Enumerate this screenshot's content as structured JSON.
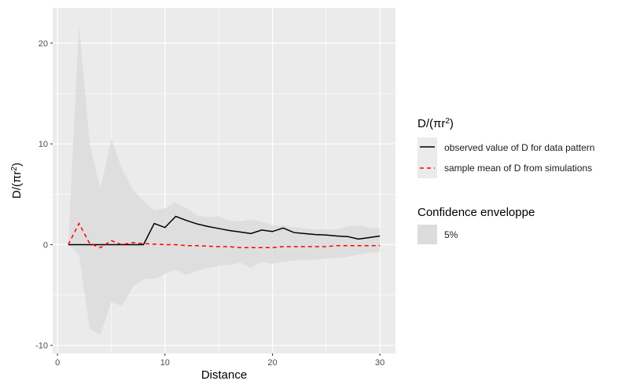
{
  "chart_data": {
    "type": "line",
    "title": "",
    "xlabel": "Distance",
    "ylabel": "D/(πr²)",
    "xlim": [
      -0.45,
      31.45
    ],
    "ylim": [
      -10.8,
      23.5
    ],
    "xticks": [
      0,
      10,
      20,
      30
    ],
    "yticks": [
      -10,
      0,
      10,
      20
    ],
    "xtick_labels": [
      "0",
      "10",
      "20",
      "30"
    ],
    "ytick_labels": [
      "-10",
      "0",
      "10",
      "20"
    ],
    "grid": true,
    "legend_placement": "right",
    "x": [
      1,
      2,
      3,
      4,
      5,
      6,
      7,
      8,
      9,
      10,
      11,
      12,
      13,
      14,
      15,
      16,
      17,
      18,
      19,
      20,
      21,
      22,
      23,
      24,
      25,
      26,
      27,
      28,
      29,
      30
    ],
    "series": [
      {
        "name": "observed value of D for data pattern",
        "color": "#000000",
        "style": "solid",
        "values": [
          0,
          0,
          0,
          0,
          0,
          0,
          0,
          0,
          2.1,
          1.7,
          2.8,
          2.4,
          2.05,
          1.8,
          1.6,
          1.4,
          1.25,
          1.1,
          1.45,
          1.3,
          1.65,
          1.2,
          1.1,
          1.0,
          0.95,
          0.85,
          0.8,
          0.55,
          0.7,
          0.85
        ]
      },
      {
        "name": "sample mean of D from simulations",
        "color": "#FF0000",
        "style": "dashed",
        "values": [
          0,
          2.1,
          0.1,
          -0.3,
          0.4,
          0,
          0.2,
          0.1,
          0.05,
          0,
          0,
          -0.1,
          -0.1,
          -0.15,
          -0.2,
          -0.2,
          -0.3,
          -0.3,
          -0.3,
          -0.3,
          -0.2,
          -0.2,
          -0.2,
          -0.2,
          -0.2,
          -0.1,
          -0.1,
          -0.1,
          -0.1,
          -0.1
        ]
      }
    ],
    "envelope": {
      "name": "5%",
      "color": "#D9D9D9",
      "upper": [
        0,
        21.8,
        10,
        5.5,
        10.5,
        7.5,
        5.5,
        4.3,
        3.4,
        3.6,
        4.2,
        3.6,
        2.9,
        2.7,
        2.8,
        2.4,
        2.3,
        2.5,
        2.3,
        1.9,
        1.9,
        1.7,
        1.6,
        1.5,
        1.5,
        1.5,
        1.8,
        1.9,
        1.7,
        1.6
      ],
      "lower": [
        0,
        -1,
        -8.4,
        -8.9,
        -5.7,
        -6.1,
        -4.2,
        -3.4,
        -3.4,
        -2.9,
        -2.5,
        -3.0,
        -2.6,
        -2.3,
        -2.1,
        -2.0,
        -1.8,
        -2.3,
        -1.7,
        -1.9,
        -1.7,
        -1.6,
        -1.5,
        -1.5,
        -1.4,
        -1.3,
        -1.2,
        -1.0,
        -0.8,
        -0.7
      ]
    },
    "legend": {
      "lines_title": "D/(πr",
      "lines_title_sup": "2",
      "lines_title_close": ")",
      "envelope_title": "Confidence enveloppe"
    }
  }
}
